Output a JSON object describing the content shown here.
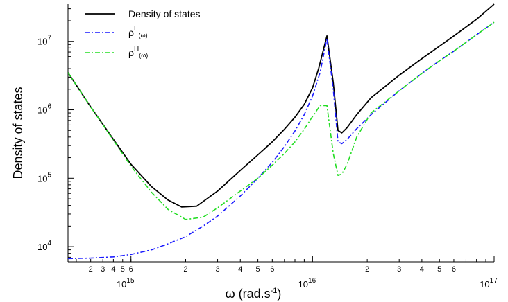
{
  "chart_data": {
    "type": "line",
    "xlabel": "ω (rad.s",
    "xlabel_sup": "-1",
    "xlabel_close": ")",
    "ylabel": "Density of states",
    "xscale": "log",
    "yscale": "log",
    "xlim": [
      450000000000000.0,
      1e+17
    ],
    "ylim": [
      6000,
      35000000.0
    ],
    "grid": false,
    "legend": "top-left",
    "x_major_ticks": [
      {
        "value": 1000000000000000.0,
        "base": "10",
        "exp": "15"
      },
      {
        "value": 1e+16,
        "base": "10",
        "exp": "16"
      },
      {
        "value": 1e+17,
        "base": "10",
        "exp": "17"
      }
    ],
    "x_minor_ticks": [
      {
        "value": 500000000000000.0,
        "label": ""
      },
      {
        "value": 600000000000000.0,
        "label": "2"
      },
      {
        "value": 700000000000000.0,
        "label": "3"
      },
      {
        "value": 800000000000000.0,
        "label": "4"
      },
      {
        "value": 900000000000000.0,
        "label": "5"
      },
      {
        "value": 1000000000000000.0,
        "label": "6"
      },
      {
        "value": 2000000000000000.0,
        "label": "2"
      },
      {
        "value": 3000000000000000.0,
        "label": "3"
      },
      {
        "value": 4000000000000000.0,
        "label": "4"
      },
      {
        "value": 5000000000000000.0,
        "label": "5"
      },
      {
        "value": 6000000000000000.0,
        "label": "6"
      },
      {
        "value": 7000000000000000.0,
        "label": ""
      },
      {
        "value": 8000000000000000.0,
        "label": ""
      },
      {
        "value": 9000000000000000.0,
        "label": ""
      },
      {
        "value": 2e+16,
        "label": "2"
      },
      {
        "value": 3e+16,
        "label": "3"
      },
      {
        "value": 4e+16,
        "label": "4"
      },
      {
        "value": 5e+16,
        "label": "5"
      },
      {
        "value": 6e+16,
        "label": "6"
      },
      {
        "value": 7e+16,
        "label": ""
      },
      {
        "value": 8e+16,
        "label": ""
      },
      {
        "value": 9e+16,
        "label": ""
      }
    ],
    "y_major_ticks": [
      {
        "value": 10000,
        "base": "10",
        "exp": "4"
      },
      {
        "value": 100000,
        "base": "10",
        "exp": "5"
      },
      {
        "value": 1000000,
        "base": "10",
        "exp": "6"
      },
      {
        "value": 10000000,
        "base": "10",
        "exp": "7"
      }
    ],
    "series": [
      {
        "name": "Density of states",
        "color": "#000000",
        "dash": "solid",
        "x": [
          450000000000000.0,
          600000000000000.0,
          800000000000000.0,
          1000000000000000.0,
          1300000000000000.0,
          1600000000000000.0,
          1900000000000000.0,
          2300000000000000.0,
          3000000000000000.0,
          4000000000000000.0,
          5000000000000000.0,
          6000000000000000.0,
          7000000000000000.0,
          8000000000000000.0,
          9000000000000000.0,
          1e+16,
          1.08e+16,
          1.2e+16,
          1.3e+16,
          1.38e+16,
          1.45e+16,
          1.55e+16,
          1.75e+16,
          2.1e+16,
          3e+16,
          4e+16,
          5e+16,
          6e+16,
          8e+16,
          1e+17
        ],
        "y": [
          3500000.0,
          1100000.0,
          370000.0,
          160000.0,
          75000.0,
          48000.0,
          38000.0,
          39000.0,
          65000.0,
          130000.0,
          220000.0,
          340000.0,
          520000.0,
          780000.0,
          1200000.0,
          2100000.0,
          4000000.0,
          12000000.0,
          2500000.0,
          500000.0,
          460000.0,
          550000.0,
          850000.0,
          1500000.0,
          3200000.0,
          5600000.0,
          8500000.0,
          12000000.0,
          21000000.0,
          35000000.0
        ]
      },
      {
        "name": "ρ",
        "sup": "E",
        "sub": "(ω)",
        "color": "#1a1aff",
        "dash": "dashdot",
        "x": [
          450000000000000.0,
          600000000000000.0,
          800000000000000.0,
          1000000000000000.0,
          1300000000000000.0,
          1600000000000000.0,
          2000000000000000.0,
          2500000000000000.0,
          3000000000000000.0,
          4000000000000000.0,
          5000000000000000.0,
          6000000000000000.0,
          7000000000000000.0,
          8000000000000000.0,
          9000000000000000.0,
          1e+16,
          1.1e+16,
          1.2e+16,
          1.3e+16,
          1.38e+16,
          1.45e+16,
          1.55e+16,
          1.75e+16,
          2.1e+16,
          3e+16,
          4e+16,
          5e+16,
          6e+16,
          8e+16,
          1e+17
        ],
        "y": [
          6700,
          6800,
          7100,
          7700,
          9000,
          11000.0,
          14000.0,
          20000.0,
          28000.0,
          55000.0,
          100000.0,
          170000.0,
          290000.0,
          490000.0,
          850000.0,
          1600000.0,
          3500000.0,
          11000000.0,
          2000000.0,
          340000.0,
          320000.0,
          370000.0,
          530000.0,
          850000.0,
          1900000.0,
          3400000.0,
          5200000.0,
          7200000.0,
          12500000.0,
          19000000.0
        ]
      },
      {
        "name": "ρ",
        "sup": "H",
        "sub": "(ω)",
        "color": "#22dd22",
        "dash": "dashdot",
        "x": [
          450000000000000.0,
          600000000000000.0,
          800000000000000.0,
          1000000000000000.0,
          1300000000000000.0,
          1600000000000000.0,
          2000000000000000.0,
          2500000000000000.0,
          3000000000000000.0,
          4000000000000000.0,
          5000000000000000.0,
          6000000000000000.0,
          7000000000000000.0,
          8000000000000000.0,
          9000000000000000.0,
          1e+16,
          1.1e+16,
          1.2e+16,
          1.3e+16,
          1.38e+16,
          1.45e+16,
          1.55e+16,
          1.75e+16,
          2.1e+16,
          3e+16,
          4e+16,
          5e+16,
          6e+16,
          8e+16,
          1e+17
        ],
        "y": [
          3500000.0,
          1100000.0,
          360000.0,
          150000.0,
          62000.0,
          35000.0,
          25000.0,
          27000.0,
          37000.0,
          65000.0,
          100000.0,
          155000.0,
          230000.0,
          340000.0,
          520000.0,
          800000.0,
          1150000.0,
          1150000.0,
          230000.0,
          110000.0,
          115000.0,
          160000.0,
          400000.0,
          900000.0,
          1900000.0,
          3400000.0,
          5200000.0,
          7200000.0,
          12500000.0,
          19000000.0
        ]
      }
    ]
  }
}
